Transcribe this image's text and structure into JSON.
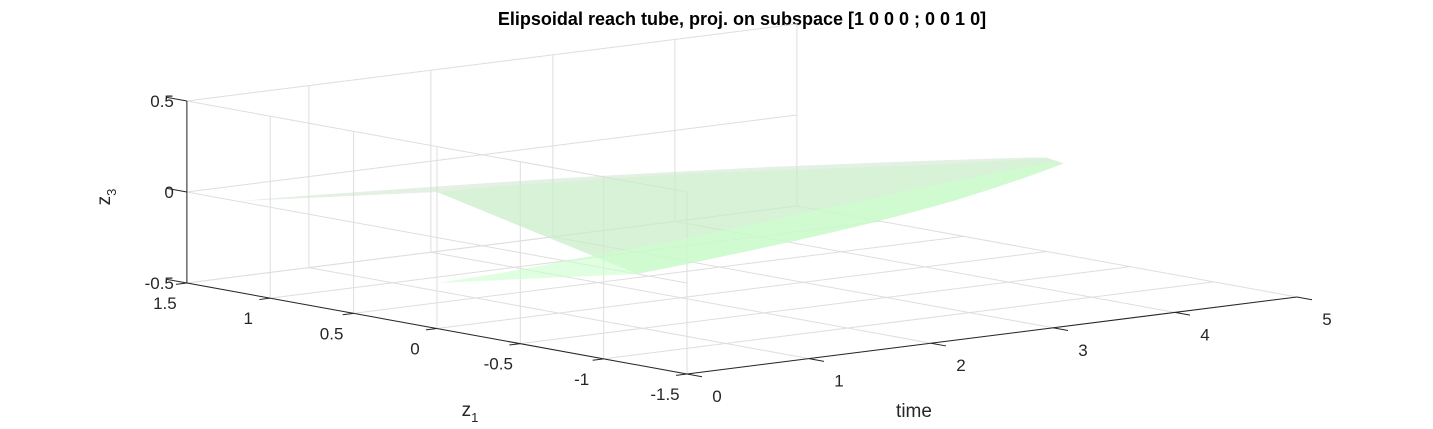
{
  "chart_data": {
    "type": "3d-surface",
    "title": "Elipsoidal reach tube, proj. on subspace [1 0 0 0 ; 0 0 1 0]",
    "xlabel": "time",
    "ylabel": "z",
    "ylabel_sub": "1",
    "zlabel": "z",
    "zlabel_sub": "3",
    "x_ticks": [
      "0",
      "1",
      "2",
      "3",
      "4",
      "5"
    ],
    "y_ticks": [
      "-1.5",
      "-1",
      "-0.5",
      "0",
      "0.5",
      "1",
      "1.5"
    ],
    "z_ticks": [
      "-0.5",
      "0",
      "0.5"
    ],
    "xlim": [
      0,
      5
    ],
    "ylim": [
      -1.5,
      1.5
    ],
    "zlim": [
      -0.5,
      0.5
    ],
    "grid": true,
    "surface_colors": [
      "#c8e2c8",
      "#ccffcc"
    ],
    "tube": {
      "t": [
        0,
        0.5,
        1,
        1.5,
        2,
        2.5,
        3,
        3.5,
        4,
        4.5,
        5
      ],
      "z1_half_width": [
        1.2,
        1.13,
        1.05,
        0.97,
        0.88,
        0.78,
        0.67,
        0.55,
        0.41,
        0.26,
        0.1
      ],
      "z3_half_height": [
        0.25,
        0.24,
        0.22,
        0.2,
        0.18,
        0.15,
        0.12,
        0.09,
        0.06,
        0.035,
        0.015
      ]
    }
  }
}
